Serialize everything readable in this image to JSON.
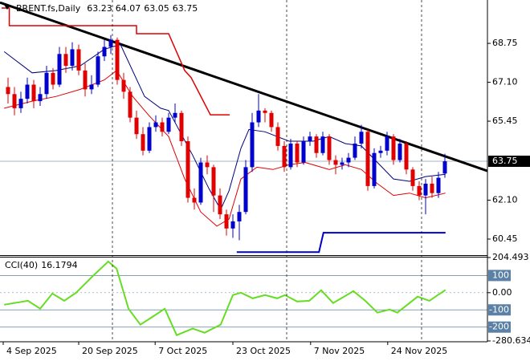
{
  "chart_data": [
    {
      "type": "candlestick",
      "title": "BRENT.fs,Daily",
      "up_color": "#0000cd",
      "down_color": "#e00000",
      "xlim": [
        -1.25,
        74.625
      ],
      "ylim": [
        59.77,
        70.59
      ],
      "yticks": [
        68.75,
        {
          "value": 67.1,
          "label": "67.10"
        },
        65.45,
        {
          "value": 62.1,
          "label": "62.10"
        },
        60.45
      ],
      "xticks": [
        {
          "value": -0.75,
          "label": "4 Sep 2025"
        },
        {
          "value": 11,
          "label": "20 Sep 2025"
        },
        {
          "value": 22.9,
          "label": "7 Oct 2025"
        },
        {
          "value": 35,
          "label": "23 Oct 2025"
        },
        {
          "value": 47.1,
          "label": "7 Nov 2025"
        },
        {
          "value": 59.1,
          "label": "24 Nov 2025"
        }
      ],
      "candles": [
        [
          66.9,
          67.3,
          66.2,
          66.6
        ],
        [
          66.6,
          66.9,
          65.7,
          66.0
        ],
        [
          66.0,
          66.7,
          65.8,
          66.4
        ],
        [
          66.4,
          67.3,
          66.2,
          67.0
        ],
        [
          67.0,
          67.2,
          66.0,
          66.3
        ],
        [
          66.3,
          66.9,
          66.1,
          66.6
        ],
        [
          66.6,
          67.8,
          66.4,
          67.5
        ],
        [
          67.5,
          67.7,
          66.8,
          67.0
        ],
        [
          67.0,
          68.6,
          66.9,
          68.3
        ],
        [
          68.3,
          68.6,
          67.5,
          67.8
        ],
        [
          67.8,
          68.8,
          67.6,
          68.5
        ],
        [
          68.5,
          68.7,
          67.4,
          67.6
        ],
        [
          67.6,
          67.9,
          66.5,
          66.8
        ],
        [
          66.8,
          67.4,
          66.6,
          67.0
        ],
        [
          67.0,
          68.4,
          66.9,
          68.2
        ],
        [
          68.2,
          68.9,
          68.0,
          68.6
        ],
        [
          68.6,
          69.1,
          68.3,
          68.9
        ],
        [
          68.9,
          69.0,
          67.0,
          67.2
        ],
        [
          67.2,
          67.5,
          66.4,
          66.7
        ],
        [
          66.7,
          66.9,
          65.4,
          65.6
        ],
        [
          65.6,
          65.9,
          64.7,
          64.9
        ],
        [
          64.9,
          65.2,
          64.0,
          64.2
        ],
        [
          64.2,
          65.4,
          64.1,
          65.2
        ],
        [
          65.2,
          65.7,
          65.0,
          65.4
        ],
        [
          65.4,
          65.6,
          64.8,
          65.0
        ],
        [
          65.0,
          65.8,
          64.9,
          65.6
        ],
        [
          65.6,
          66.2,
          65.4,
          65.8
        ],
        [
          65.8,
          65.9,
          64.4,
          64.6
        ],
        [
          64.6,
          64.8,
          62.0,
          62.2
        ],
        [
          62.2,
          62.6,
          61.7,
          62.0
        ],
        [
          62.0,
          63.9,
          61.9,
          63.7
        ],
        [
          63.7,
          64.0,
          63.2,
          63.5
        ],
        [
          63.5,
          63.6,
          61.6,
          62.3
        ],
        [
          62.3,
          62.6,
          61.3,
          61.5
        ],
        [
          61.5,
          61.7,
          60.6,
          60.9
        ],
        [
          60.9,
          61.5,
          60.5,
          61.2
        ],
        [
          61.2,
          61.9,
          60.4,
          61.6
        ],
        [
          61.6,
          63.8,
          61.5,
          63.5
        ],
        [
          63.5,
          65.8,
          63.3,
          65.4
        ],
        [
          65.4,
          66.6,
          65.2,
          65.9
        ],
        [
          65.9,
          66.0,
          65.4,
          65.8
        ],
        [
          65.8,
          65.9,
          65.0,
          65.2
        ],
        [
          65.2,
          65.4,
          64.2,
          64.4
        ],
        [
          64.4,
          64.6,
          63.3,
          63.5
        ],
        [
          63.5,
          64.7,
          63.4,
          64.5
        ],
        [
          64.5,
          64.6,
          63.5,
          63.7
        ],
        [
          63.7,
          64.8,
          63.6,
          64.6
        ],
        [
          64.6,
          65.0,
          64.4,
          64.8
        ],
        [
          64.8,
          64.9,
          63.9,
          64.1
        ],
        [
          64.1,
          65.0,
          64.0,
          64.8
        ],
        [
          64.8,
          64.9,
          63.6,
          63.8
        ],
        [
          63.8,
          64.0,
          63.2,
          63.6
        ],
        [
          63.6,
          63.9,
          63.4,
          63.7
        ],
        [
          63.7,
          64.1,
          63.5,
          63.9
        ],
        [
          63.9,
          64.8,
          63.8,
          64.5
        ],
        [
          64.5,
          65.3,
          64.3,
          65.0
        ],
        [
          65.0,
          65.1,
          62.5,
          62.7
        ],
        [
          62.7,
          64.3,
          62.6,
          64.1
        ],
        [
          64.1,
          64.4,
          63.9,
          64.2
        ],
        [
          64.2,
          65.0,
          64.0,
          64.8
        ],
        [
          64.8,
          64.9,
          63.6,
          63.8
        ],
        [
          63.8,
          64.7,
          63.7,
          64.5
        ],
        [
          64.5,
          64.6,
          63.2,
          63.4
        ],
        [
          63.4,
          63.5,
          62.5,
          62.7
        ],
        [
          62.7,
          62.9,
          62.1,
          62.3
        ],
        [
          62.3,
          63.0,
          61.5,
          62.8
        ],
        [
          62.8,
          63.1,
          62.2,
          62.4
        ],
        [
          62.4,
          63.3,
          62.2,
          63.05
        ],
        [
          63.23,
          64.07,
          63.05,
          63.75
        ]
      ],
      "lines": [
        {
          "color": "#000000",
          "width": 3,
          "x": [
            -1.25,
            74.625
          ],
          "values": [
            70.48,
            63.34
          ]
        },
        {
          "color": "#e00000",
          "width": 1.5,
          "x": [
            -1,
            0.2,
            0.2,
            20,
            20,
            25,
            27.5,
            28.5,
            31.5,
            34.5
          ],
          "values": [
            70.25,
            70.25,
            69.5,
            69.5,
            69.16,
            69.16,
            67.6,
            67.3,
            65.72,
            65.72
          ]
        },
        {
          "color": "#0000cd",
          "width": 2,
          "x": [
            35.6,
            48.4,
            49.1,
            68.1
          ],
          "values": [
            59.9,
            59.9,
            60.72,
            60.72
          ]
        },
        {
          "color": "#000080",
          "width": 1,
          "x": [
            -0.6,
            3.75,
            7.5,
            11.25,
            15,
            17.5,
            21.25,
            23.75,
            25,
            28.75,
            31.25,
            33.1,
            34.4,
            36.25,
            37.5,
            40,
            43.75,
            47.5,
            50,
            52.5,
            55,
            57.5,
            60,
            62.5,
            65,
            68.1
          ],
          "values": [
            68.4,
            67.5,
            67.6,
            67.8,
            68.5,
            68.7,
            66.5,
            66.0,
            65.9,
            64.0,
            62.6,
            61.7,
            62.5,
            64.3,
            65.1,
            65.0,
            64.6,
            64.6,
            64.8,
            64.5,
            64.4,
            63.7,
            63.0,
            62.9,
            63.1,
            63.2
          ]
        },
        {
          "color": "#e00000",
          "width": 1,
          "x": [
            -0.6,
            3.75,
            7.5,
            11.25,
            15,
            16.9,
            19.4,
            21.9,
            25,
            27.5,
            30,
            32.5,
            34.4,
            36.25,
            38.75,
            41.25,
            43.75,
            46.25,
            48.75,
            50,
            52.5,
            55,
            57.5,
            60,
            62.5,
            65,
            68.1
          ],
          "values": [
            66.0,
            66.3,
            66.5,
            66.8,
            67.2,
            67.6,
            66.5,
            65.7,
            64.8,
            63.0,
            61.6,
            61.0,
            61.3,
            63.0,
            63.5,
            63.4,
            63.6,
            63.7,
            63.5,
            63.4,
            63.6,
            63.4,
            62.8,
            62.3,
            62.4,
            62.2,
            62.4
          ]
        }
      ]
    },
    {
      "type": "line",
      "title": "CCI(40)",
      "color": "#66dd22",
      "xlim": [
        -1.25,
        74.625
      ],
      "ylim": [
        -280.634,
        204.493
      ],
      "yticks": [
        204.493,
        {
          "value": 0,
          "label": "0.00"
        },
        -280.634
      ],
      "levels": [
        100,
        -100,
        -200
      ],
      "level_color": "#5b82a6",
      "x": [
        -0.6,
        3.1,
        5,
        6.9,
        8.75,
        10.6,
        13.1,
        15.6,
        16.9,
        18.75,
        20.6,
        22.5,
        24.4,
        26.25,
        28.75,
        30.6,
        33.1,
        35,
        36.25,
        38.1,
        40,
        41.9,
        43.1,
        45,
        46.9,
        48.75,
        50.6,
        52.5,
        53.75,
        55.6,
        57.5,
        59.4,
        60.6,
        62.5,
        63.75,
        65.6,
        66.9,
        68.1
      ],
      "values": [
        -70,
        -47,
        -93,
        -5,
        -47,
        0,
        93,
        181,
        140,
        -93,
        -186,
        -140,
        -93,
        -247,
        -209,
        -233,
        -186,
        -14,
        0,
        -33,
        -14,
        -33,
        -14,
        -51,
        -47,
        14,
        -60,
        -19,
        9,
        -47,
        -116,
        -98,
        -116,
        -60,
        -23,
        -47,
        -14,
        16.1794
      ]
    }
  ]
}
